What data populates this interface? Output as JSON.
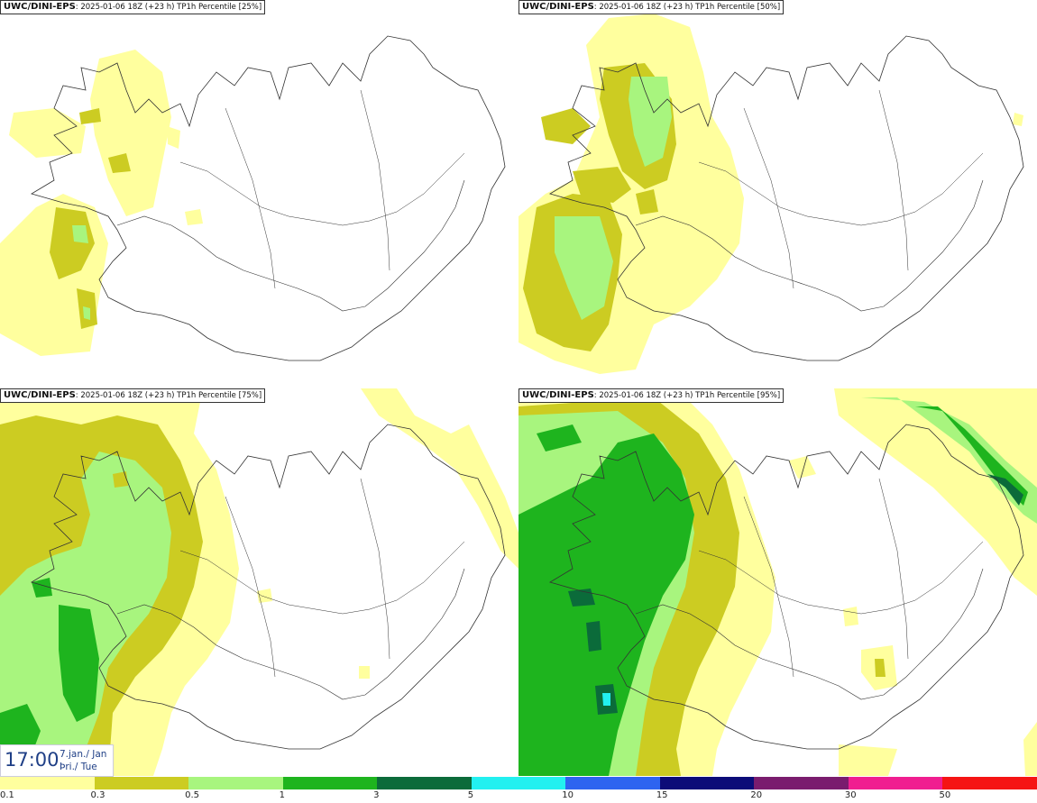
{
  "panels": [
    {
      "model": "UWC/DINI-EPS",
      "run": "2025-01-06 18Z (+23 h)",
      "field": "TP1h Percentile",
      "percentile": "[25%]"
    },
    {
      "model": "UWC/DINI-EPS",
      "run": "2025-01-06 18Z (+23 h)",
      "field": "TP1h Percentile",
      "percentile": "[50%]"
    },
    {
      "model": "UWC/DINI-EPS",
      "run": "2025-01-06 18Z (+23 h)",
      "field": "TP1h Percentile",
      "percentile": "[75%]"
    },
    {
      "model": "UWC/DINI-EPS",
      "run": "2025-01-06 18Z (+23 h)",
      "field": "TP1h Percentile",
      "percentile": "[95%]"
    }
  ],
  "valid_time": {
    "clock": "17:00",
    "date_line": "7.jan./ Jan",
    "day_line": "Þri./ Tue"
  },
  "legend": {
    "thresholds": [
      "0.1",
      "0.3",
      "0.5",
      "1",
      "3",
      "5",
      "10",
      "15",
      "20",
      "30",
      "50"
    ],
    "colors": [
      "#ffff9e",
      "#cccc22",
      "#a8f57e",
      "#1eb41e",
      "#0b6b3a",
      "#22f0f0",
      "#2e64f0",
      "#0c0c78",
      "#7a1c6e",
      "#f01e90",
      "#f51414"
    ]
  }
}
